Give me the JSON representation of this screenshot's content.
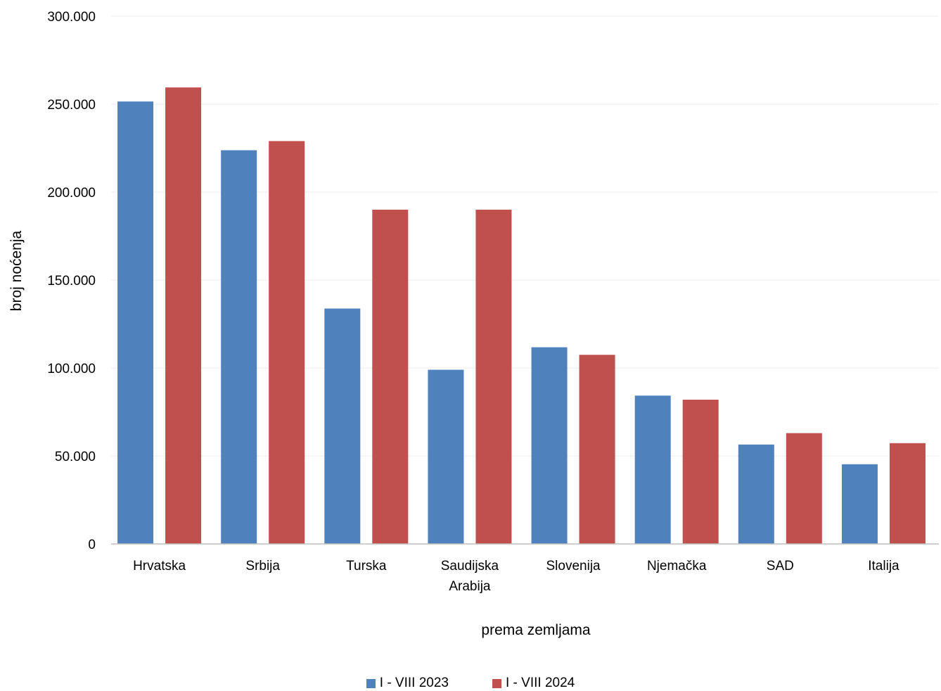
{
  "chart_data": {
    "type": "bar",
    "title": "",
    "xlabel": "prema zemljama",
    "ylabel": "broj noćenja",
    "categories": [
      [
        "Hrvatska"
      ],
      [
        "Srbija"
      ],
      [
        "Turska"
      ],
      [
        "Saudijska",
        "Arabija"
      ],
      [
        "Slovenija"
      ],
      [
        "Njemačka"
      ],
      [
        "SAD"
      ],
      [
        "Italija"
      ]
    ],
    "series": [
      {
        "name": "I - VIII 2023",
        "color": "#4F81BD",
        "values": [
          251500,
          223800,
          133800,
          99000,
          111800,
          84300,
          56500,
          45300
        ]
      },
      {
        "name": "I - VIII 2024",
        "color": "#C0504D",
        "values": [
          259500,
          229000,
          190000,
          190000,
          107500,
          82000,
          63000,
          57300
        ]
      }
    ],
    "ylim": [
      0,
      300000
    ],
    "yticks": [
      0,
      50000,
      100000,
      150000,
      200000,
      250000,
      300000
    ],
    "ytick_labels": [
      "0",
      "50.000",
      "100.000",
      "150.000",
      "200.000",
      "250.000",
      "300.000"
    ],
    "grid": true,
    "legend_position": "bottom"
  }
}
